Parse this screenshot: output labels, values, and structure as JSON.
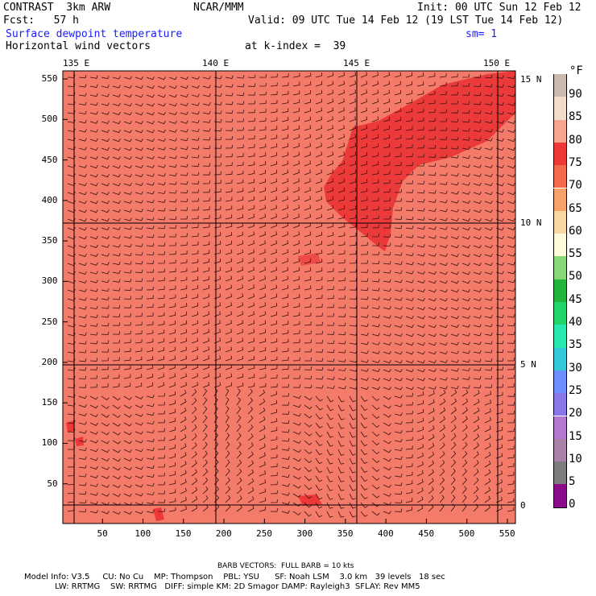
{
  "header": {
    "model": "CONTRAST  3km ARW",
    "source": "NCAR/MMM",
    "init": "Init: 00 UTC Sun 12 Feb 12",
    "fcst": "Fcst:   57 h",
    "valid": "Valid: 09 UTC Tue 14 Feb 12 (19 LST Tue 14 Feb 12)",
    "field": "Surface dewpoint temperature",
    "smooth": "sm= 1",
    "vectors": "Horizontal wind vectors",
    "kindex": "at k-index =  39"
  },
  "map": {
    "top_ticks": [
      "135 E",
      "140 E",
      "145 E",
      "150 E"
    ],
    "right_ticks": [
      "15 N",
      "10 N",
      "5 N",
      "0"
    ],
    "x_ticks": [
      "50",
      "100",
      "150",
      "200",
      "250",
      "300",
      "350",
      "400",
      "450",
      "500",
      "550"
    ],
    "y_ticks": [
      "550",
      "500",
      "450",
      "400",
      "350",
      "300",
      "250",
      "200",
      "150",
      "100",
      "50"
    ],
    "x_range": [
      1,
      560
    ],
    "y_range": [
      1,
      560
    ],
    "background_color": "#f47a6a",
    "moist_region_color": "#ec3a3a"
  },
  "legend": {
    "unit": "°F",
    "entries": [
      {
        "label": "90",
        "color": "#c9b9ae"
      },
      {
        "label": "85",
        "color": "#f3dccb"
      },
      {
        "label": "80",
        "color": "#f7a58e"
      },
      {
        "label": "75",
        "color": "#ee3838"
      },
      {
        "label": "70",
        "color": "#f4684c"
      },
      {
        "label": "65",
        "color": "#f6a26a"
      },
      {
        "label": "60",
        "color": "#f9d6a2"
      },
      {
        "label": "55",
        "color": "#fffadc"
      },
      {
        "label": "50",
        "color": "#88d87a"
      },
      {
        "label": "45",
        "color": "#23b43c"
      },
      {
        "label": "40",
        "color": "#22d46a"
      },
      {
        "label": "35",
        "color": "#27e8b0"
      },
      {
        "label": "30",
        "color": "#33c8d8"
      },
      {
        "label": "25",
        "color": "#6d8eff"
      },
      {
        "label": "20",
        "color": "#8a76e8"
      },
      {
        "label": "15",
        "color": "#b578d0"
      },
      {
        "label": "10",
        "color": "#a882a8"
      },
      {
        "label": "5",
        "color": "#7d7d7d"
      },
      {
        "label": "0",
        "color": "#8a0c8a"
      }
    ]
  },
  "footer": {
    "barb": "BARB VECTORS:  FULL BARB = 10 kts",
    "line1": "Model Info: V3.5     CU: No Cu    MP: Thompson    PBL: YSU      SF: Noah LSM    3.0 km   39 levels   18 sec",
    "line2": "            LW: RRTMG    SW: RRTMG   DIFF: simple KM: 2D Smagor DAMP: Rayleigh3  SFLAY: Rev MM5"
  }
}
